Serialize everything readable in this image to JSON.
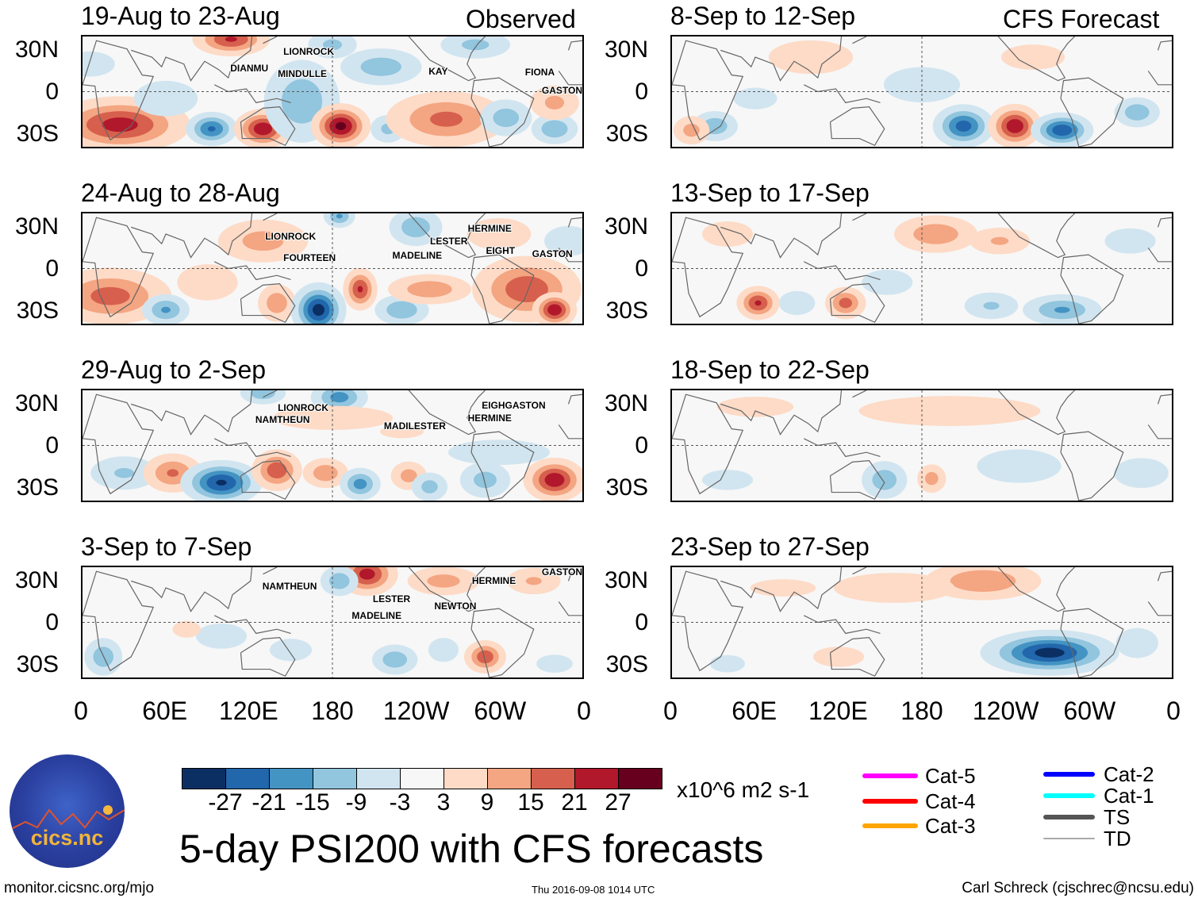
{
  "header": {
    "observed_label": "Observed",
    "forecast_label": "CFS Forecast"
  },
  "lat_labels": [
    "30N",
    "0",
    "30S"
  ],
  "lon_labels": [
    "0",
    "60E",
    "120E",
    "180",
    "120W",
    "60W",
    "0"
  ],
  "colorbar": {
    "colors": [
      "#0b2f63",
      "#2266ac",
      "#4393c3",
      "#92c5de",
      "#d1e5f0",
      "#f7f7f7",
      "#fddbc7",
      "#f4a582",
      "#d6604d",
      "#b2182b",
      "#67001f"
    ],
    "labels": [
      "-27",
      "-21",
      "-15",
      "-9",
      "-3",
      "3",
      "9",
      "15",
      "21",
      "27"
    ],
    "levels": [
      -27,
      -21,
      -15,
      -9,
      -3,
      3,
      9,
      15,
      21,
      27
    ],
    "units": "x10^6 m2 s-1"
  },
  "legend": [
    {
      "label": "Cat-5",
      "color": "#ff00ff"
    },
    {
      "label": "Cat-4",
      "color": "#ff0000"
    },
    {
      "label": "Cat-3",
      "color": "#ffa500"
    },
    {
      "label": "Cat-2",
      "color": "#0000ff"
    },
    {
      "label": "Cat-1",
      "color": "#00ffff"
    },
    {
      "label": "TS",
      "color": "#555555"
    },
    {
      "label": "TD",
      "color": "#aaaaaa"
    }
  ],
  "title": "5-day PSI200 with CFS forecasts",
  "footer": {
    "left": "monitor.cicsnc.org/mjo",
    "center": "Thu 2016-09-08 1014 UTC",
    "right": "Carl Schreck (cjschrec@ncsu.edu)"
  },
  "logo": {
    "text": "cics.nc",
    "ring_text": "Cooperative Institute for Climate and Satellites"
  },
  "chart_data": {
    "type": "heatmap",
    "variable": "200-hPa streamfunction anomaly",
    "xlim": [
      0,
      360
    ],
    "ylim": [
      -40,
      40
    ],
    "anomaly_format": "[lon, lat, value, lon_radius_deg, lat_radius_deg]",
    "panels": [
      {
        "title": "19-Aug to 23-Aug",
        "kind": "observed",
        "anomalies": [
          [
            27,
            -24,
            24,
            32,
            13
          ],
          [
            107,
            38,
            22,
            18,
            8
          ],
          [
            93,
            -27,
            -22,
            12,
            8
          ],
          [
            130,
            -27,
            26,
            13,
            9
          ],
          [
            158,
            -7,
            -14,
            20,
            22
          ],
          [
            186,
            -25,
            29,
            13,
            10
          ],
          [
            220,
            -27,
            -11,
            10,
            8
          ],
          [
            262,
            -20,
            17,
            30,
            14
          ],
          [
            215,
            18,
            -13,
            22,
            10
          ],
          [
            180,
            34,
            -11,
            14,
            8
          ],
          [
            305,
            -19,
            -13,
            14,
            10
          ],
          [
            340,
            -27,
            -15,
            12,
            8
          ],
          [
            340,
            -8,
            11,
            14,
            10
          ],
          [
            283,
            34,
            -11,
            20,
            8
          ],
          [
            60,
            -5,
            -6,
            25,
            14
          ],
          [
            5,
            20,
            -6,
            20,
            10
          ]
        ],
        "storms": [
          {
            "name": "LIONROCK",
            "lon": 146,
            "lat": 29
          },
          {
            "name": "DIANMU",
            "lon": 108,
            "lat": 17
          },
          {
            "name": "MINDULLE",
            "lon": 142,
            "lat": 13
          },
          {
            "name": "KAY",
            "lon": 250,
            "lat": 15
          },
          {
            "name": "FIONA",
            "lon": 319,
            "lat": 14
          },
          {
            "name": "GASTON",
            "lon": 331,
            "lat": 9
          }
        ]
      },
      {
        "title": "24-Aug to 28-Aug",
        "kind": "observed",
        "anomalies": [
          [
            20,
            -20,
            18,
            30,
            14
          ],
          [
            60,
            -30,
            -16,
            12,
            8
          ],
          [
            140,
            -25,
            14,
            10,
            10
          ],
          [
            170,
            -30,
            -30,
            12,
            12
          ],
          [
            200,
            -15,
            22,
            8,
            10
          ],
          [
            230,
            -30,
            -15,
            14,
            8
          ],
          [
            250,
            -15,
            14,
            22,
            8
          ],
          [
            320,
            -15,
            20,
            26,
            16
          ],
          [
            340,
            -30,
            26,
            10,
            8
          ],
          [
            90,
            -10,
            8,
            20,
            12
          ],
          [
            130,
            20,
            12,
            25,
            12
          ],
          [
            185,
            38,
            -16,
            8,
            6
          ],
          [
            240,
            30,
            -14,
            14,
            10
          ],
          [
            300,
            25,
            9,
            20,
            10
          ],
          [
            350,
            20,
            -8,
            16,
            10
          ]
        ],
        "storms": [
          {
            "name": "LIONROCK",
            "lon": 133,
            "lat": 23
          },
          {
            "name": "FOURTEEN",
            "lon": 146,
            "lat": 16
          },
          {
            "name": "MADELINE",
            "lon": 224,
            "lat": 10
          },
          {
            "name": "LESTER",
            "lon": 251,
            "lat": 12
          },
          {
            "name": "HERMINE",
            "lon": 278,
            "lat": 21
          },
          {
            "name": "EIGHT",
            "lon": 291,
            "lat": 29
          },
          {
            "name": "GASTON",
            "lon": 324,
            "lat": 11
          }
        ]
      },
      {
        "title": "29-Aug to 2-Sep",
        "kind": "observed",
        "anomalies": [
          [
            30,
            -20,
            -10,
            20,
            10
          ],
          [
            65,
            -20,
            16,
            15,
            10
          ],
          [
            100,
            -27,
            -28,
            18,
            10
          ],
          [
            140,
            -18,
            20,
            12,
            10
          ],
          [
            175,
            -20,
            14,
            12,
            8
          ],
          [
            200,
            -28,
            -18,
            10,
            8
          ],
          [
            235,
            -22,
            12,
            10,
            8
          ],
          [
            250,
            -30,
            -12,
            10,
            8
          ],
          [
            290,
            -25,
            -12,
            14,
            10
          ],
          [
            340,
            -25,
            26,
            14,
            10
          ],
          [
            185,
            35,
            -18,
            14,
            8
          ],
          [
            130,
            38,
            -14,
            12,
            6
          ],
          [
            180,
            20,
            8,
            40,
            8
          ],
          [
            300,
            -5,
            -6,
            40,
            10
          ],
          [
            230,
            10,
            5,
            20,
            6
          ]
        ],
        "storms": [
          {
            "name": "LIONROCK",
            "lon": 142,
            "lat": 27
          },
          {
            "name": "NAMTHEUN",
            "lon": 126,
            "lat": 19
          },
          {
            "name": "MADILESTER",
            "lon": 218,
            "lat": 14
          },
          {
            "name": "EIGHGASTON",
            "lon": 288,
            "lat": 29
          },
          {
            "name": "HERMINE",
            "lon": 278,
            "lat": 20
          }
        ]
      },
      {
        "title": "3-Sep to 7-Sep",
        "kind": "observed",
        "anomalies": [
          [
            15,
            -25,
            -14,
            10,
            10
          ],
          [
            205,
            35,
            24,
            14,
            10
          ],
          [
            225,
            -27,
            -14,
            12,
            8
          ],
          [
            290,
            -25,
            20,
            10,
            8
          ],
          [
            185,
            30,
            -14,
            10,
            8
          ],
          [
            100,
            -10,
            -6,
            20,
            10
          ],
          [
            150,
            -20,
            -7,
            15,
            8
          ],
          [
            260,
            30,
            12,
            20,
            8
          ],
          [
            325,
            30,
            10,
            16,
            8
          ],
          [
            75,
            -5,
            7,
            10,
            6
          ],
          [
            260,
            -20,
            -8,
            10,
            8
          ],
          [
            340,
            -30,
            -8,
            12,
            6
          ]
        ],
        "storms": [
          {
            "name": "NAMTHEUN",
            "lon": 131,
            "lat": 26
          },
          {
            "name": "LESTER",
            "lon": 210,
            "lat": 17
          },
          {
            "name": "MADELINE",
            "lon": 195,
            "lat": 13
          },
          {
            "name": "NEWTON",
            "lon": 254,
            "lat": 12
          },
          {
            "name": "HERMINE",
            "lon": 281,
            "lat": 30
          },
          {
            "name": "GASTON",
            "lon": 331,
            "lat": 36
          }
        ]
      },
      {
        "title": "8-Sep to 12-Sep",
        "kind": "forecast",
        "anomalies": [
          [
            210,
            -25,
            -24,
            14,
            10
          ],
          [
            247,
            -25,
            26,
            12,
            10
          ],
          [
            281,
            -28,
            -26,
            14,
            8
          ],
          [
            335,
            -15,
            -14,
            12,
            8
          ],
          [
            31,
            -25,
            -14,
            12,
            8
          ],
          [
            14,
            -28,
            12,
            10,
            8
          ],
          [
            100,
            25,
            7,
            30,
            12
          ],
          [
            180,
            5,
            -6,
            30,
            14
          ],
          [
            260,
            25,
            6,
            25,
            10
          ],
          [
            60,
            -5,
            -5,
            20,
            10
          ]
        ],
        "storms": []
      },
      {
        "title": "13-Sep to 17-Sep",
        "kind": "forecast",
        "anomalies": [
          [
            62,
            -25,
            22,
            10,
            8
          ],
          [
            125,
            -25,
            18,
            10,
            8
          ],
          [
            190,
            25,
            14,
            22,
            10
          ],
          [
            236,
            20,
            10,
            18,
            8
          ],
          [
            281,
            -30,
            -16,
            20,
            8
          ],
          [
            230,
            -27,
            -10,
            16,
            8
          ],
          [
            90,
            -25,
            -8,
            12,
            8
          ],
          [
            155,
            -10,
            -6,
            20,
            10
          ],
          [
            330,
            20,
            -6,
            20,
            10
          ],
          [
            40,
            25,
            6,
            20,
            10
          ]
        ],
        "storms": []
      },
      {
        "title": "18-Sep to 22-Sep",
        "kind": "forecast",
        "anomalies": [
          [
            153,
            -25,
            -14,
            12,
            10
          ],
          [
            187,
            -24,
            12,
            8,
            8
          ],
          [
            338,
            -20,
            -8,
            18,
            10
          ],
          [
            200,
            25,
            8,
            60,
            10
          ],
          [
            60,
            28,
            6,
            30,
            8
          ],
          [
            250,
            -15,
            -7,
            30,
            12
          ],
          [
            40,
            -25,
            -6,
            20,
            8
          ]
        ],
        "storms": []
      },
      {
        "title": "23-Sep to 27-Sep",
        "kind": "forecast",
        "anomalies": [
          [
            224,
            30,
            15,
            30,
            10
          ],
          [
            272,
            -22,
            -30,
            30,
            10
          ],
          [
            335,
            -15,
            -8,
            14,
            10
          ],
          [
            160,
            25,
            8,
            40,
            10
          ],
          [
            80,
            25,
            5,
            30,
            8
          ],
          [
            120,
            -25,
            6,
            20,
            8
          ],
          [
            40,
            -30,
            -5,
            16,
            8
          ]
        ],
        "storms": []
      }
    ]
  }
}
